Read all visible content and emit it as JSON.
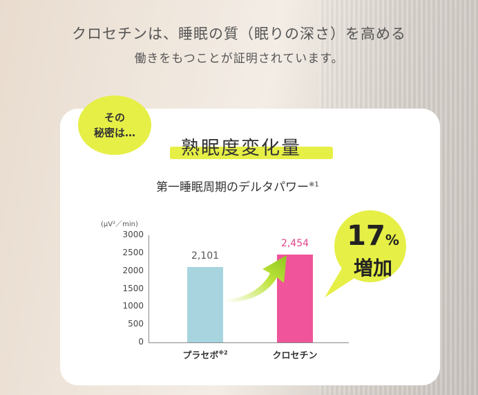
{
  "headline": {
    "line1": "クロセチンは、睡眠の質（眠りの深さ）を高める",
    "line2": "働きをもつことが証明されています。"
  },
  "badge": {
    "line1": "その",
    "line2": "秘密は…"
  },
  "chart_data": {
    "type": "bar",
    "title": "熟眠度変化量",
    "subtitle": "第一睡眠周期のデルタパワー",
    "subtitle_note": "※1",
    "ylabel": "(μV²／min)",
    "ylim": [
      0,
      3000
    ],
    "yticks": [
      "3000",
      "2500",
      "2000",
      "1500",
      "1000",
      "500",
      "0"
    ],
    "categories": [
      "プラセボ",
      "クロセチン"
    ],
    "category_notes": [
      "※2",
      ""
    ],
    "values": [
      2101,
      2454
    ],
    "value_labels": [
      "2,101",
      "2,454"
    ],
    "bar_colors": [
      "#a8d4e0",
      "#f0549a"
    ],
    "value_label_colors": [
      "#555555",
      "#e0458a"
    ],
    "callout": {
      "number": "17",
      "sign": "%",
      "word": "増加"
    }
  },
  "colors": {
    "accent": "#e6ef45",
    "pink": "#f0549a",
    "blue": "#a8d4e0"
  }
}
